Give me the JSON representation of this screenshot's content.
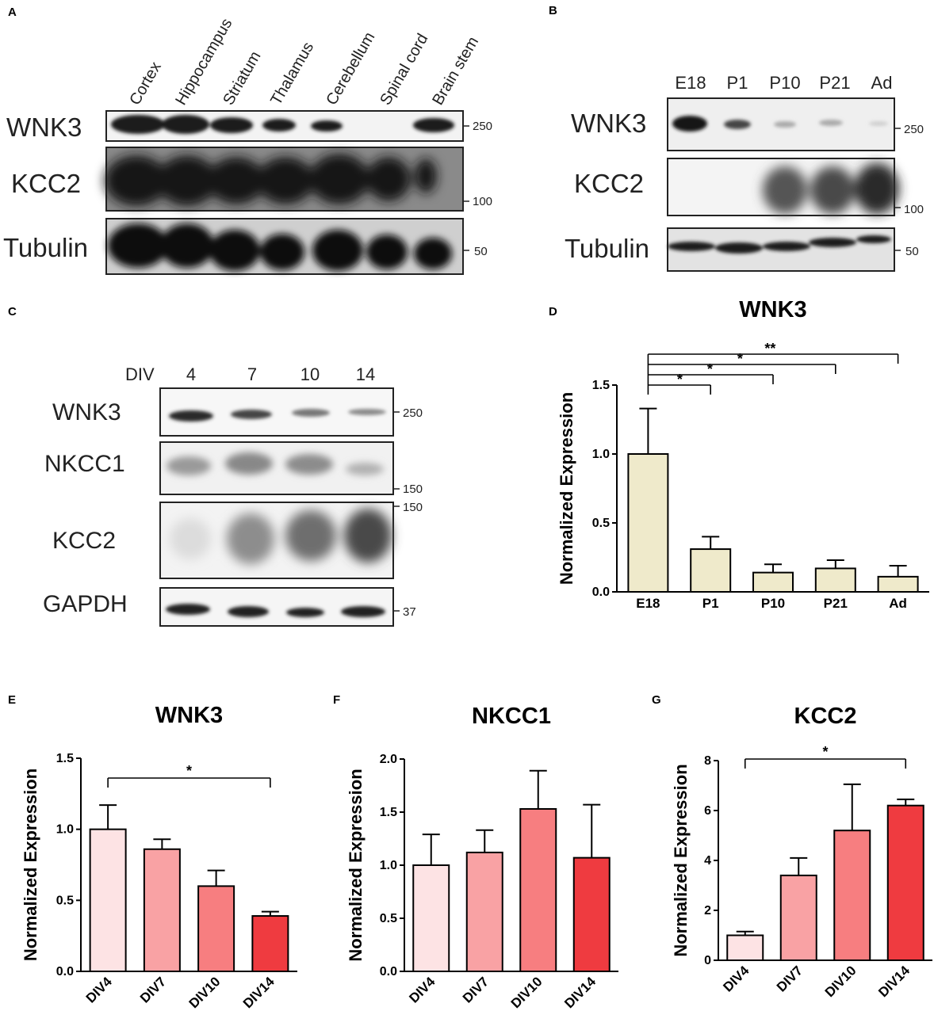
{
  "panels": {
    "a": {
      "letter": "A",
      "lanes": [
        "Cortex",
        "Hippocampus",
        "Striatum",
        "Thalamus",
        "Cerebellum",
        "Spinal cord",
        "Brain stem"
      ],
      "rows": [
        {
          "label": "WNK3",
          "mw": "250"
        },
        {
          "label": "KCC2",
          "mw": "100"
        },
        {
          "label": "Tubulin",
          "mw": "50"
        }
      ]
    },
    "b": {
      "letter": "B",
      "lanes": [
        "E18",
        "P1",
        "P10",
        "P21",
        "Ad"
      ],
      "rows": [
        {
          "label": "WNK3",
          "mw": "250"
        },
        {
          "label": "KCC2",
          "mw": "100"
        },
        {
          "label": "Tubulin",
          "mw": "50"
        }
      ]
    },
    "c": {
      "letter": "C",
      "lane_header": "DIV",
      "lanes": [
        "4",
        "7",
        "10",
        "14"
      ],
      "rows": [
        {
          "label": "WNK3",
          "mw": "250"
        },
        {
          "label": "NKCC1",
          "mw": "150"
        },
        {
          "label": "KCC2",
          "mw": "150"
        },
        {
          "label": "GAPDH",
          "mw": "37"
        }
      ]
    },
    "d": {
      "letter": "D"
    },
    "e": {
      "letter": "E"
    },
    "f": {
      "letter": "F"
    },
    "g": {
      "letter": "G"
    }
  },
  "colors": {
    "beige": "#efeacb",
    "div4": "#fde3e4",
    "div7": "#f9a2a4",
    "div10": "#f77e80",
    "div14": "#ef3b40"
  },
  "chart_data": [
    {
      "panel": "D",
      "type": "bar",
      "title": "WNK3",
      "ylabel": "Normalized Expression",
      "xlabel": "",
      "categories": [
        "E18",
        "P1",
        "P10",
        "P21",
        "Ad"
      ],
      "values": [
        1.0,
        0.31,
        0.14,
        0.17,
        0.11
      ],
      "errors": [
        0.33,
        0.09,
        0.06,
        0.06,
        0.08
      ],
      "ylim": [
        0,
        1.5
      ],
      "yticks": [
        "0.0",
        "0.5",
        "1.0",
        "1.5"
      ],
      "significance": [
        {
          "from": "E18",
          "to": "P1",
          "label": "*"
        },
        {
          "from": "E18",
          "to": "P10",
          "label": "*"
        },
        {
          "from": "E18",
          "to": "P21",
          "label": "*"
        },
        {
          "from": "E18",
          "to": "Ad",
          "label": "**"
        }
      ]
    },
    {
      "panel": "E",
      "type": "bar",
      "title": "WNK3",
      "ylabel": "Normalized Expression",
      "xlabel": "",
      "categories": [
        "DIV4",
        "DIV7",
        "DIV10",
        "DIV14"
      ],
      "values": [
        1.0,
        0.86,
        0.6,
        0.39
      ],
      "errors": [
        0.17,
        0.07,
        0.11,
        0.03
      ],
      "ylim": [
        0,
        1.5
      ],
      "yticks": [
        "0.0",
        "0.5",
        "1.0",
        "1.5"
      ],
      "significance": [
        {
          "from": "DIV4",
          "to": "DIV14",
          "label": "*"
        }
      ]
    },
    {
      "panel": "F",
      "type": "bar",
      "title": "NKCC1",
      "ylabel": "Normalized Expression",
      "xlabel": "",
      "categories": [
        "DIV4",
        "DIV7",
        "DIV10",
        "DIV14"
      ],
      "values": [
        1.0,
        1.12,
        1.53,
        1.07
      ],
      "errors": [
        0.29,
        0.21,
        0.36,
        0.5
      ],
      "ylim": [
        0,
        2.0
      ],
      "yticks": [
        "0.0",
        "0.5",
        "1.0",
        "1.5",
        "2.0"
      ],
      "significance": []
    },
    {
      "panel": "G",
      "type": "bar",
      "title": "KCC2",
      "ylabel": "Normalized Expression",
      "xlabel": "",
      "categories": [
        "DIV4",
        "DIV7",
        "DIV10",
        "DIV14"
      ],
      "values": [
        1.0,
        3.4,
        5.2,
        6.2
      ],
      "errors": [
        0.15,
        0.7,
        1.85,
        0.25
      ],
      "ylim": [
        0,
        8
      ],
      "yticks": [
        "0",
        "2",
        "4",
        "6",
        "8"
      ],
      "significance": [
        {
          "from": "DIV4",
          "to": "DIV14",
          "label": "*"
        }
      ]
    }
  ]
}
